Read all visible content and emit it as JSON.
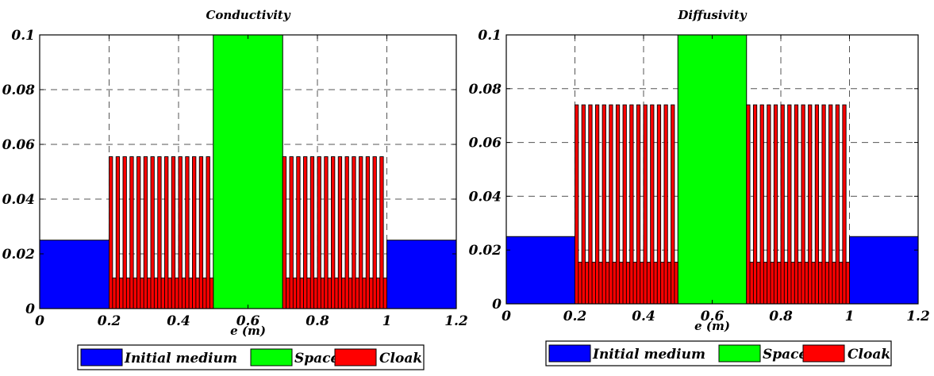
{
  "chart_data": [
    {
      "type": "bar",
      "title": "Conductivity",
      "xlabel": "e (m)",
      "ylabel": "",
      "xlim": [
        0,
        1.2
      ],
      "ylim": [
        0,
        0.1
      ],
      "xticks": [
        "0",
        "0.2",
        "0.4",
        "0.6",
        "0.8",
        "1",
        "1.2"
      ],
      "yticks": [
        "0",
        "0.02",
        "0.04",
        "0.06",
        "0.08",
        "0.1"
      ],
      "grid": true,
      "legend_position": "bottom",
      "series": [
        {
          "name": "Initial medium",
          "color": "#0000ff",
          "segments": [
            {
              "x0": 0,
              "x1": 0.2,
              "value": 0.025
            },
            {
              "x0": 1.0,
              "x1": 1.2,
              "value": 0.025
            }
          ]
        },
        {
          "name": "Spacer",
          "color": "#00ff00",
          "segments": [
            {
              "x0": 0.5,
              "x1": 0.7,
              "value": 0.1
            }
          ]
        },
        {
          "name": "Cloak",
          "color": "#ff0000",
          "layers": [
            {
              "x0": 0.2,
              "x1": 0.5,
              "count": 30,
              "high": 0.0555,
              "low": 0.0112
            },
            {
              "x0": 0.7,
              "x1": 1.0,
              "count": 30,
              "high": 0.0555,
              "low": 0.0112
            }
          ]
        }
      ]
    },
    {
      "type": "bar",
      "title": "Diffusivity",
      "xlabel": "e (m)",
      "ylabel": "",
      "xlim": [
        0,
        1.2
      ],
      "ylim": [
        0,
        0.1
      ],
      "xticks": [
        "0",
        "0.2",
        "0.4",
        "0.6",
        "0.8",
        "1",
        "1.2"
      ],
      "yticks": [
        "0",
        "0.02",
        "0.04",
        "0.06",
        "0.08",
        "0.1"
      ],
      "grid": true,
      "legend_position": "bottom",
      "series": [
        {
          "name": "Initial medium",
          "color": "#0000ff",
          "segments": [
            {
              "x0": 0,
              "x1": 0.2,
              "value": 0.025
            },
            {
              "x0": 1.0,
              "x1": 1.2,
              "value": 0.025
            }
          ]
        },
        {
          "name": "Spacer",
          "color": "#00ff00",
          "segments": [
            {
              "x0": 0.5,
              "x1": 0.7,
              "value": 0.1
            }
          ]
        },
        {
          "name": "Cloak",
          "color": "#ff0000",
          "layers": [
            {
              "x0": 0.2,
              "x1": 0.5,
              "count": 30,
              "high": 0.074,
              "low": 0.0155
            },
            {
              "x0": 0.7,
              "x1": 1.0,
              "count": 30,
              "high": 0.074,
              "low": 0.0155
            }
          ]
        }
      ]
    }
  ]
}
